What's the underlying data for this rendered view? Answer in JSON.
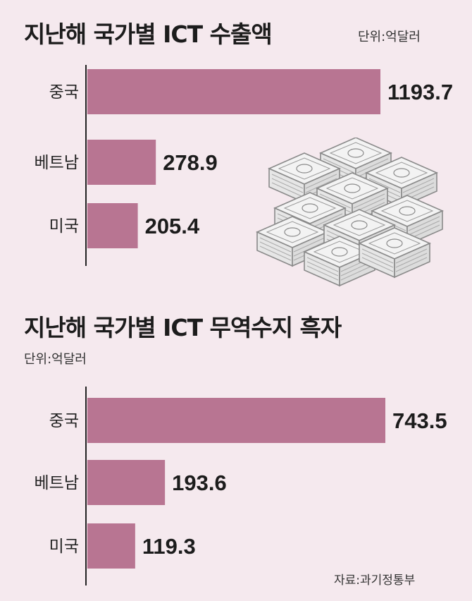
{
  "colors": {
    "background": "#f5e9ee",
    "bar": "#b87592",
    "axis": "#222222",
    "illustration_stroke": "#8a8a8a"
  },
  "illustration": {
    "icon": "stacked-money-bundles-icon"
  },
  "source": "자료:과기정통부",
  "chart_data": [
    {
      "type": "bar",
      "orientation": "horizontal",
      "title": "지난해 국가별 ICT 수출액",
      "unit": "단위:억달러",
      "categories": [
        "중국",
        "베트남",
        "미국"
      ],
      "values": [
        1193.7,
        278.9,
        205.4
      ],
      "value_labels": [
        "1193.7",
        "278.9",
        "205.4"
      ],
      "xlim": [
        0,
        1300
      ]
    },
    {
      "type": "bar",
      "orientation": "horizontal",
      "title": "지난해 국가별 ICT 무역수지 흑자",
      "unit": "단위:억달러",
      "categories": [
        "중국",
        "베트남",
        "미국"
      ],
      "values": [
        743.5,
        193.6,
        119.3
      ],
      "value_labels": [
        "743.5",
        "193.6",
        "119.3"
      ],
      "xlim": [
        0,
        780
      ]
    }
  ]
}
